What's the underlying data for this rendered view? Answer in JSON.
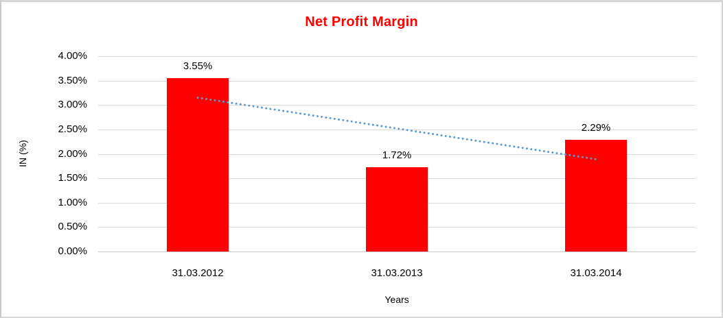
{
  "chart_data": {
    "type": "bar",
    "title": "Net Profit Margin",
    "categories": [
      "31.03.2012",
      "31.03.2013",
      "31.03.2014"
    ],
    "values": [
      3.55,
      1.72,
      2.29
    ],
    "data_labels": [
      "3.55%",
      "1.72%",
      "2.29%"
    ],
    "xlabel": "Years",
    "ylabel": "IN (%)",
    "ylim": [
      0,
      4
    ],
    "ytick_step": 0.5,
    "ytick_labels": [
      "0.00%",
      "0.50%",
      "1.00%",
      "1.50%",
      "2.00%",
      "2.50%",
      "3.00%",
      "3.50%",
      "4.00%"
    ],
    "grid": true,
    "legend": "none",
    "trendline": {
      "type": "linear",
      "style": "dotted",
      "start_value": 3.15,
      "end_value": 1.89
    },
    "colors": {
      "bar": "#ff0000",
      "title": "#ff0000",
      "trendline": "#5b9bd5",
      "gridline": "#d9d9d9",
      "axis_line": "#c6c6c6",
      "text": "#000000"
    }
  }
}
